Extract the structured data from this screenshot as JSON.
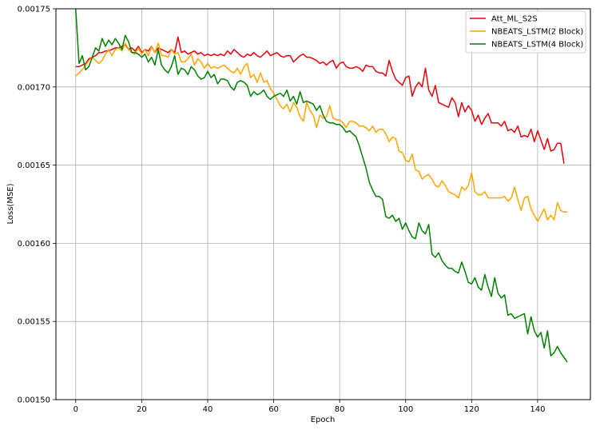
{
  "chart_data": {
    "type": "line",
    "title": "",
    "xlabel": "Epoch",
    "ylabel": "Loss(MSE)",
    "xlim": [
      -6,
      156
    ],
    "ylim": [
      0.0015,
      0.00175
    ],
    "x_ticks": [
      0,
      20,
      40,
      60,
      80,
      100,
      120,
      140
    ],
    "y_ticks": [
      0.0015,
      0.00155,
      0.0016,
      0.00165,
      0.0017,
      0.00175
    ],
    "y_tick_labels": [
      "0.00150",
      "0.00155",
      "0.00160",
      "0.00165",
      "0.00170",
      "0.00175"
    ],
    "grid": true,
    "legend_position": "top-right",
    "series": [
      {
        "name": "Att_ML_S2S",
        "color": "#e8000b",
        "values": [
          0.001713,
          0.001713,
          0.001714,
          0.001715,
          0.001718,
          0.001719,
          0.00172,
          0.001722,
          0.001722,
          0.001723,
          0.001723,
          0.001724,
          0.001725,
          0.001725,
          0.001726,
          0.001727,
          0.001724,
          0.001725,
          0.001723,
          0.001726,
          0.001722,
          0.001724,
          0.001723,
          0.001726,
          0.001722,
          0.001725,
          0.001724,
          0.001723,
          0.001722,
          0.001724,
          0.001722,
          0.001732,
          0.001722,
          0.001723,
          0.001721,
          0.001722,
          0.001723,
          0.001721,
          0.001722,
          0.00172,
          0.001721,
          0.00172,
          0.001721,
          0.00172,
          0.001721,
          0.00172,
          0.001723,
          0.001721,
          0.001724,
          0.001722,
          0.00172,
          0.001719,
          0.001721,
          0.00172,
          0.001722,
          0.00172,
          0.001719,
          0.001721,
          0.001723,
          0.00172,
          0.001721,
          0.001722,
          0.00172,
          0.001719,
          0.00172,
          0.00172,
          0.001716,
          0.001718,
          0.00172,
          0.001721,
          0.001719,
          0.001719,
          0.001718,
          0.001717,
          0.001715,
          0.001716,
          0.001714,
          0.001716,
          0.001717,
          0.001712,
          0.001715,
          0.001716,
          0.001713,
          0.001712,
          0.001712,
          0.001713,
          0.001712,
          0.00171,
          0.001714,
          0.001713,
          0.001713,
          0.00171,
          0.001709,
          0.001709,
          0.001707,
          0.001717,
          0.00171,
          0.001705,
          0.001703,
          0.001701,
          0.001706,
          0.001707,
          0.001694,
          0.0017,
          0.001703,
          0.0017,
          0.001712,
          0.001698,
          0.001694,
          0.001701,
          0.00169,
          0.001689,
          0.001688,
          0.001687,
          0.001693,
          0.00169,
          0.001681,
          0.00169,
          0.001684,
          0.001688,
          0.001685,
          0.001678,
          0.001682,
          0.001676,
          0.00168,
          0.001683,
          0.001677,
          0.001677,
          0.001677,
          0.001675,
          0.001678,
          0.001672,
          0.001673,
          0.001671,
          0.001675,
          0.001668,
          0.001669,
          0.001668,
          0.001673,
          0.001665,
          0.001672,
          0.001666,
          0.00166,
          0.001667,
          0.001659,
          0.00166,
          0.001664,
          0.001664,
          0.001651
        ]
      },
      {
        "name": "NBEATS_LSTM(2 Block)",
        "color": "#ffa500",
        "values": [
          0.001707,
          0.001709,
          0.001711,
          0.001714,
          0.001717,
          0.001719,
          0.001717,
          0.001715,
          0.001717,
          0.001721,
          0.001724,
          0.00172,
          0.001724,
          0.001725,
          0.001723,
          0.001728,
          0.001724,
          0.001722,
          0.001721,
          0.001725,
          0.001721,
          0.001724,
          0.00172,
          0.001726,
          0.001722,
          0.001728,
          0.00172,
          0.00172,
          0.001719,
          0.001724,
          0.001721,
          0.001722,
          0.001716,
          0.001716,
          0.001718,
          0.001721,
          0.001714,
          0.001718,
          0.001716,
          0.001712,
          0.001715,
          0.001712,
          0.001713,
          0.001712,
          0.001713,
          0.001714,
          0.001712,
          0.00171,
          0.001709,
          0.001712,
          0.001708,
          0.001713,
          0.001715,
          0.001706,
          0.001708,
          0.001703,
          0.001709,
          0.001703,
          0.001704,
          0.001699,
          0.001696,
          0.001692,
          0.001688,
          0.001686,
          0.001689,
          0.001684,
          0.00169,
          0.001687,
          0.001681,
          0.001678,
          0.00169,
          0.001685,
          0.001682,
          0.001674,
          0.001682,
          0.00168,
          0.001681,
          0.001688,
          0.00168,
          0.001679,
          0.001679,
          0.001677,
          0.001674,
          0.001678,
          0.001678,
          0.001677,
          0.001675,
          0.001675,
          0.001674,
          0.001672,
          0.001675,
          0.001671,
          0.001673,
          0.001673,
          0.00167,
          0.001665,
          0.001668,
          0.001667,
          0.001659,
          0.001658,
          0.001653,
          0.001652,
          0.001657,
          0.001647,
          0.001646,
          0.001641,
          0.001643,
          0.001644,
          0.001641,
          0.001637,
          0.001636,
          0.00164,
          0.001637,
          0.001633,
          0.001632,
          0.001631,
          0.001629,
          0.001636,
          0.001634,
          0.001637,
          0.001645,
          0.001633,
          0.001631,
          0.001631,
          0.001633,
          0.001629,
          0.001629,
          0.001629,
          0.001629,
          0.001629,
          0.00163,
          0.001627,
          0.001629,
          0.001636,
          0.001628,
          0.001621,
          0.001629,
          0.00163,
          0.001622,
          0.001618,
          0.001614,
          0.001618,
          0.001622,
          0.001615,
          0.001618,
          0.001615,
          0.001626,
          0.001621,
          0.00162,
          0.00162
        ]
      },
      {
        "name": "NBEATS_LSTM(4 Block)",
        "color": "#008000",
        "values": [
          0.00175,
          0.001715,
          0.00172,
          0.001711,
          0.001713,
          0.001719,
          0.001725,
          0.001723,
          0.001731,
          0.001726,
          0.00173,
          0.001727,
          0.001731,
          0.001728,
          0.001724,
          0.001733,
          0.001729,
          0.001722,
          0.001722,
          0.001721,
          0.001719,
          0.001721,
          0.001716,
          0.001719,
          0.001714,
          0.001724,
          0.001714,
          0.001711,
          0.001709,
          0.001713,
          0.00172,
          0.001708,
          0.001712,
          0.001711,
          0.001708,
          0.001713,
          0.001711,
          0.001707,
          0.001705,
          0.001706,
          0.00171,
          0.001706,
          0.001708,
          0.001702,
          0.001705,
          0.001705,
          0.001704,
          0.0017,
          0.001698,
          0.001703,
          0.001704,
          0.001703,
          0.001701,
          0.001694,
          0.001697,
          0.001695,
          0.001696,
          0.001698,
          0.001694,
          0.001692,
          0.001694,
          0.001695,
          0.001696,
          0.001694,
          0.001698,
          0.001691,
          0.001694,
          0.001689,
          0.001697,
          0.00169,
          0.001691,
          0.00169,
          0.001689,
          0.001685,
          0.001688,
          0.001682,
          0.001678,
          0.001677,
          0.001677,
          0.001676,
          0.001676,
          0.001674,
          0.001671,
          0.001672,
          0.00167,
          0.001668,
          0.001662,
          0.001655,
          0.001648,
          0.001639,
          0.001634,
          0.00163,
          0.00163,
          0.001628,
          0.001617,
          0.001616,
          0.001618,
          0.001614,
          0.001616,
          0.001609,
          0.001613,
          0.001608,
          0.001604,
          0.001603,
          0.001613,
          0.001608,
          0.001606,
          0.001612,
          0.001593,
          0.001591,
          0.001594,
          0.001589,
          0.001586,
          0.001584,
          0.001584,
          0.001582,
          0.001581,
          0.001588,
          0.001582,
          0.001575,
          0.001574,
          0.001578,
          0.001572,
          0.00157,
          0.00158,
          0.001572,
          0.001566,
          0.001578,
          0.001568,
          0.001565,
          0.001567,
          0.001554,
          0.001555,
          0.001552,
          0.001553,
          0.001554,
          0.001555,
          0.001542,
          0.001553,
          0.001544,
          0.00154,
          0.001543,
          0.001533,
          0.001544,
          0.001528,
          0.00153,
          0.001534,
          0.00153,
          0.001527,
          0.001524
        ]
      }
    ]
  }
}
